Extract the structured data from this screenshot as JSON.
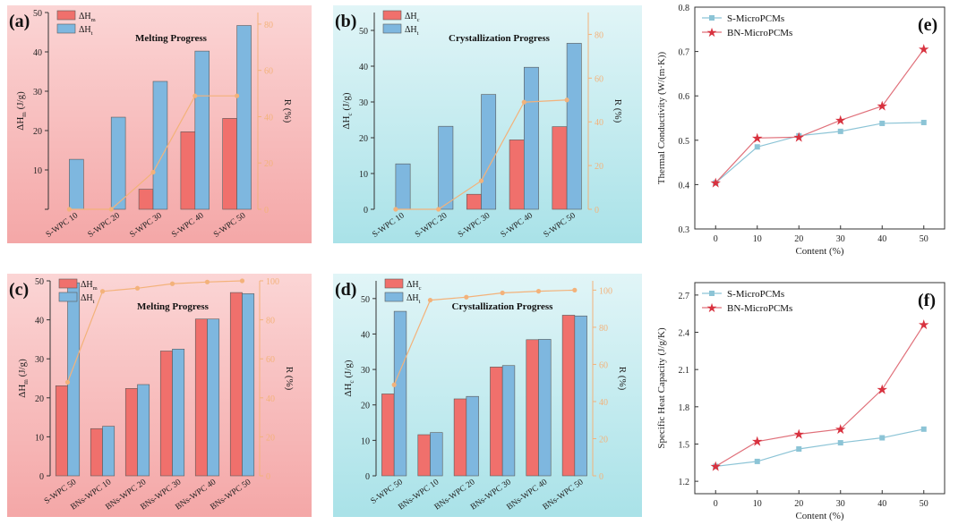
{
  "chart_data": [
    {
      "panel_label": "(a)",
      "type": "bar",
      "title": "Melting Progress",
      "categories": [
        "S-WPC 10",
        "S-WPC 20",
        "S-WPC 30",
        "S-WPC 40",
        "S-WPC 50"
      ],
      "series": [
        {
          "name": "ΔHm",
          "base": "ΔH",
          "sub": "m",
          "color": "#f0706c",
          "values": [
            0,
            0,
            5.1,
            19.7,
            23.1
          ]
        },
        {
          "name": "ΔHt",
          "base": "ΔH",
          "sub": "t",
          "color": "#7eb7df",
          "values": [
            12.7,
            23.4,
            32.5,
            40.2,
            46.7
          ]
        }
      ],
      "line": {
        "name": "R (%)",
        "color": "#f3b27a",
        "values": [
          0,
          0,
          16,
          49,
          49
        ]
      },
      "ylabel": "ΔHm (J/g)",
      "ylabel_base": "ΔH",
      "ylabel_sub": "m",
      "ylabel_unit": " (J/g)",
      "y2label": "R (%)",
      "ylim": [
        0,
        50
      ],
      "y2lim": [
        0,
        85
      ],
      "yticks": [
        "",
        "10",
        "20",
        "30",
        "40",
        "50"
      ],
      "y2ticks": [
        "0",
        "20",
        "40",
        "60",
        "80"
      ],
      "background": [
        "#fbd5d5",
        "#f4a7a7"
      ]
    },
    {
      "panel_label": "(b)",
      "type": "bar",
      "title": "Crystallization Progress",
      "categories": [
        "S-WPC 10",
        "S-WPC 20",
        "S-WPC 30",
        "S-WPC 40",
        "S-WPC 50"
      ],
      "series": [
        {
          "name": "ΔHc",
          "base": "ΔH",
          "sub": "c",
          "color": "#f0706c",
          "values": [
            0,
            0,
            4.2,
            19.4,
            23.1
          ]
        },
        {
          "name": "ΔHt",
          "base": "ΔH",
          "sub": "t",
          "color": "#7eb7df",
          "values": [
            12.7,
            23.2,
            32.1,
            39.7,
            46.4
          ]
        }
      ],
      "line": {
        "name": "R (%)",
        "color": "#f3b27a",
        "values": [
          0,
          0,
          13,
          49,
          50
        ]
      },
      "ylabel": "ΔHc (J/g)",
      "ylabel_base": "ΔH",
      "ylabel_sub": "c",
      "ylabel_unit": " (J/g)",
      "y2label": "R (%)",
      "ylim": [
        0,
        55
      ],
      "y2lim": [
        0,
        90
      ],
      "yticks": [
        "0",
        "10",
        "20",
        "30",
        "40",
        "50"
      ],
      "y2ticks": [
        "0",
        "20",
        "40",
        "60",
        "80"
      ],
      "background": [
        "#e1f5f7",
        "#a9e2e8"
      ]
    },
    {
      "panel_label": "(c)",
      "type": "bar",
      "title": "Melting Progress",
      "categories": [
        "S-WPC 50",
        "BNs-WPC 10",
        "BNs-WPC 20",
        "BNs-WPC 30",
        "BNs-WPC 40",
        "BNs-WPC 50"
      ],
      "series": [
        {
          "name": "ΔHm",
          "base": "ΔH",
          "sub": "m",
          "color": "#f0706c",
          "values": [
            23.1,
            12.1,
            22.4,
            32.0,
            40.2,
            47.0
          ]
        },
        {
          "name": "ΔHt",
          "base": "ΔH",
          "sub": "t",
          "color": "#7eb7df",
          "values": [
            49.5,
            12.7,
            23.4,
            32.5,
            40.2,
            46.7
          ]
        }
      ],
      "line": {
        "name": "R (%)",
        "color": "#f3b27a",
        "values": [
          48,
          94.6,
          96.2,
          98.5,
          99.4,
          100
        ]
      },
      "ylabel": "ΔHm (J/g)",
      "ylabel_base": "ΔH",
      "ylabel_sub": "m",
      "ylabel_unit": " (J/g)",
      "y2label": "R (%)",
      "ylim": [
        0,
        50
      ],
      "y2lim": [
        0,
        100
      ],
      "yticks": [
        "0",
        "10",
        "20",
        "30",
        "40",
        "50"
      ],
      "y2ticks": [
        "0",
        "20",
        "40",
        "60",
        "80",
        "100"
      ],
      "background": [
        "#fbd5d5",
        "#f4a7a7"
      ]
    },
    {
      "panel_label": "(d)",
      "type": "bar",
      "title": "Crystallization Progress",
      "categories": [
        "S-WPC 50",
        "BNs-WPC 10",
        "BNs-WPC 20",
        "BNs-WPC 30",
        "BNs-WPC 40",
        "BNs-WPC 50"
      ],
      "series": [
        {
          "name": "ΔHc",
          "base": "ΔH",
          "sub": "c",
          "color": "#f0706c",
          "values": [
            23.1,
            11.6,
            21.7,
            30.7,
            38.4,
            45.3
          ]
        },
        {
          "name": "ΔHt",
          "base": "ΔH",
          "sub": "t",
          "color": "#7eb7df",
          "values": [
            46.4,
            12.2,
            22.4,
            31.1,
            38.5,
            45.1
          ]
        }
      ],
      "line": {
        "name": "R (%)",
        "color": "#f3b27a",
        "values": [
          49,
          94.6,
          96.2,
          98.5,
          99.4,
          100
        ]
      },
      "ylabel": "ΔHc (J/g)",
      "ylabel_base": "ΔH",
      "ylabel_sub": "c",
      "ylabel_unit": " (J/g)",
      "y2label": "R (%)",
      "ylim": [
        0,
        55
      ],
      "y2lim": [
        0,
        105
      ],
      "yticks": [
        "0",
        "10",
        "20",
        "30",
        "40",
        "50"
      ],
      "y2ticks": [
        "0",
        "20",
        "40",
        "60",
        "80",
        "100"
      ],
      "background": [
        "#e1f5f7",
        "#a9e2e8"
      ]
    },
    {
      "panel_label": "(e)",
      "type": "line",
      "x": [
        0,
        10,
        20,
        30,
        40,
        50
      ],
      "series": [
        {
          "name": "S-MicroPCMs",
          "color": "#8cc4d6",
          "marker": "square",
          "values": [
            0.404,
            0.485,
            0.51,
            0.52,
            0.538,
            0.54
          ]
        },
        {
          "name": "BN-MicroPCMs",
          "color": "#e0707a",
          "marker": "star",
          "values": [
            0.404,
            0.505,
            0.507,
            0.545,
            0.577,
            0.705
          ]
        }
      ],
      "xlabel": "Content (%)",
      "ylabel": "Thermal Conductivity (W/(m·K))",
      "xlim": [
        -5,
        55
      ],
      "ylim": [
        0.3,
        0.8
      ],
      "xticks": [
        "0",
        "10",
        "20",
        "30",
        "40",
        "50"
      ],
      "yticks": [
        "0.3",
        "0.4",
        "0.5",
        "0.6",
        "0.7",
        "0.8"
      ]
    },
    {
      "panel_label": "(f)",
      "type": "line",
      "x": [
        0,
        10,
        20,
        30,
        40,
        50
      ],
      "series": [
        {
          "name": "S-MicroPCMs",
          "color": "#8cc4d6",
          "marker": "square",
          "values": [
            1.32,
            1.36,
            1.46,
            1.51,
            1.55,
            1.62
          ]
        },
        {
          "name": "BN-MicroPCMs",
          "color": "#e0707a",
          "marker": "star",
          "values": [
            1.32,
            1.52,
            1.58,
            1.62,
            1.94,
            2.46
          ]
        }
      ],
      "xlabel": "Content (%)",
      "ylabel": "Specific Heat Capacity (J/g/K)",
      "xlim": [
        -5,
        55
      ],
      "ylim": [
        1.1,
        2.8
      ],
      "xticks": [
        "0",
        "10",
        "20",
        "30",
        "40",
        "50"
      ],
      "yticks": [
        "1.2",
        "1.5",
        "1.8",
        "2.1",
        "2.4",
        "2.7"
      ]
    }
  ]
}
